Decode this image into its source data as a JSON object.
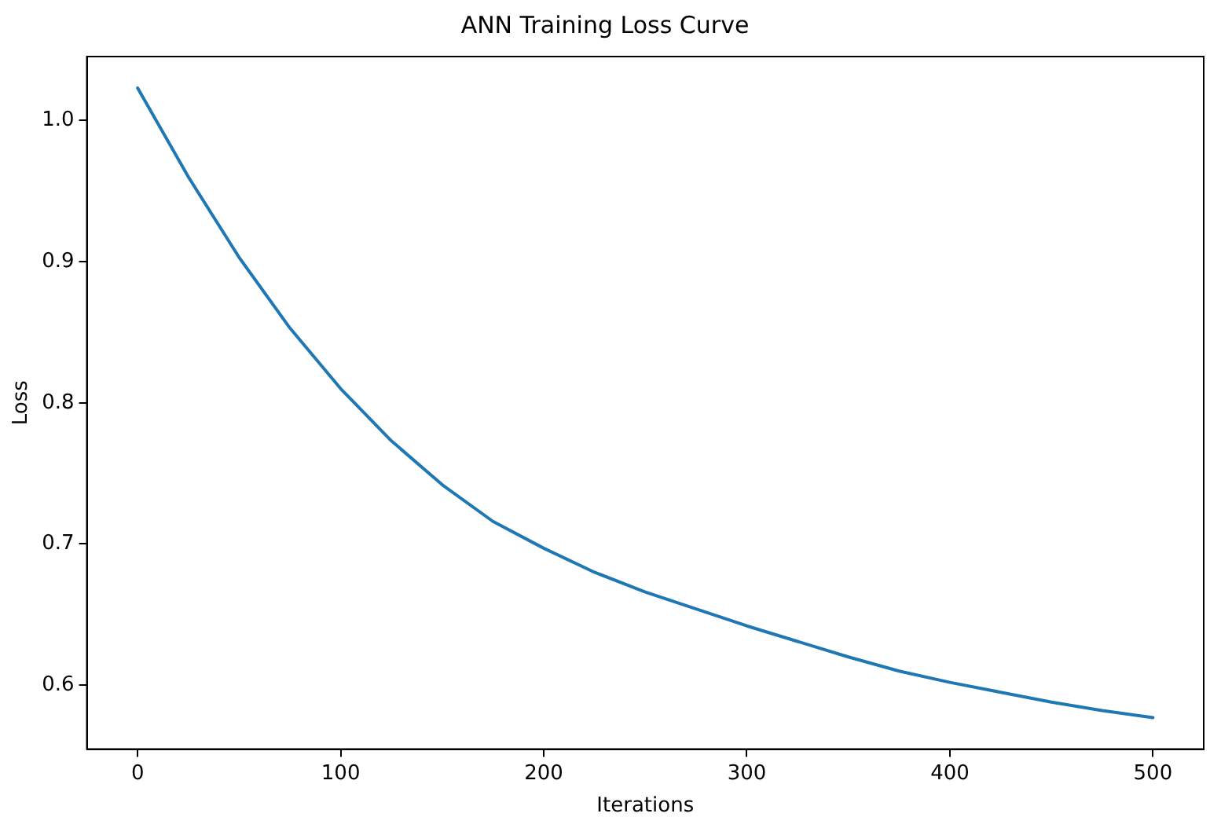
{
  "chart_data": {
    "type": "line",
    "title": "ANN Training Loss Curve",
    "xlabel": "Iterations",
    "ylabel": "Loss",
    "x": [
      0,
      25,
      50,
      75,
      100,
      125,
      150,
      175,
      200,
      225,
      250,
      275,
      300,
      325,
      350,
      375,
      400,
      425,
      450,
      475,
      500
    ],
    "series": [
      {
        "color": "#1f77b4",
        "values": [
          1.023,
          0.96,
          0.903,
          0.853,
          0.81,
          0.773,
          0.742,
          0.716,
          0.697,
          0.68,
          0.666,
          0.654,
          0.642,
          0.631,
          0.62,
          0.61,
          0.602,
          0.595,
          0.588,
          0.582,
          0.577
        ]
      }
    ],
    "xlim": [
      -25,
      525
    ],
    "xticks": [
      0,
      100,
      200,
      300,
      400,
      500
    ],
    "ylim": [
      0.5547,
      1.0453
    ],
    "yticks": [
      {
        "value": 0.6,
        "label": "0.6"
      },
      {
        "value": 0.7,
        "label": "0.7"
      },
      {
        "value": 0.8,
        "label": "0.8"
      },
      {
        "value": 0.9,
        "label": "0.9"
      },
      {
        "value": 1.0,
        "label": "1.0"
      }
    ],
    "grid": false,
    "legend": false,
    "marker": "none",
    "line_style": "solid"
  }
}
